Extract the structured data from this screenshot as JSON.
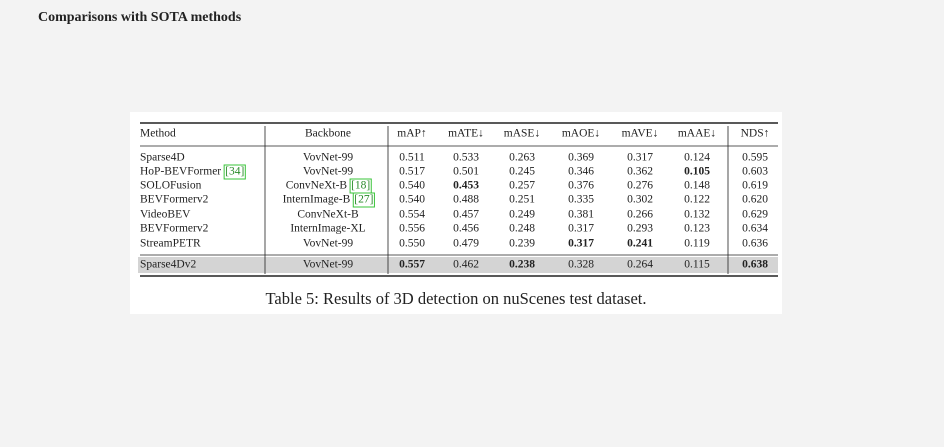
{
  "heading": "Comparisons with SOTA methods",
  "table": {
    "columns": [
      "Method",
      "Backbone",
      "mAP↑",
      "mATE↓",
      "mASE↓",
      "mAOE↓",
      "mAVE↓",
      "mAAE↓",
      "NDS↑"
    ],
    "rows": [
      {
        "method": "Sparse4D",
        "backbone": "VovNet-99",
        "values": [
          "0.511",
          "0.533",
          "0.263",
          "0.369",
          "0.317",
          "0.124",
          "0.595"
        ]
      },
      {
        "method": "HoP-BEVFormer",
        "method_cite": "[34]",
        "backbone": "VovNet-99",
        "values": [
          "0.517",
          "0.501",
          "0.245",
          "0.346",
          "0.362",
          "0.105",
          "0.603"
        ],
        "bold": [
          5
        ]
      },
      {
        "method": "SOLOFusion",
        "backbone": "ConvNeXt-B",
        "backbone_cite": "[18]",
        "values": [
          "0.540",
          "0.453",
          "0.257",
          "0.376",
          "0.276",
          "0.148",
          "0.619"
        ],
        "bold": [
          1
        ]
      },
      {
        "method": "BEVFormerv2",
        "backbone": "InternImage-B",
        "backbone_cite": "[27]",
        "values": [
          "0.540",
          "0.488",
          "0.251",
          "0.335",
          "0.302",
          "0.122",
          "0.620"
        ]
      },
      {
        "method": "VideoBEV",
        "backbone": "ConvNeXt-B",
        "values": [
          "0.554",
          "0.457",
          "0.249",
          "0.381",
          "0.266",
          "0.132",
          "0.629"
        ]
      },
      {
        "method": "BEVFormerv2",
        "backbone": "InternImage-XL",
        "values": [
          "0.556",
          "0.456",
          "0.248",
          "0.317",
          "0.293",
          "0.123",
          "0.634"
        ]
      },
      {
        "method": "StreamPETR",
        "backbone": "VovNet-99",
        "values": [
          "0.550",
          "0.479",
          "0.239",
          "0.317",
          "0.241",
          "0.119",
          "0.636"
        ],
        "bold": [
          3,
          4
        ]
      },
      {
        "method": "Sparse4Dv2",
        "backbone": "VovNet-99",
        "values": [
          "0.557",
          "0.462",
          "0.238",
          "0.328",
          "0.264",
          "0.115",
          "0.638"
        ],
        "bold": [
          0,
          2,
          6
        ],
        "highlight": true
      }
    ],
    "caption": "Table 5: Results of 3D detection on nuScenes test dataset."
  }
}
